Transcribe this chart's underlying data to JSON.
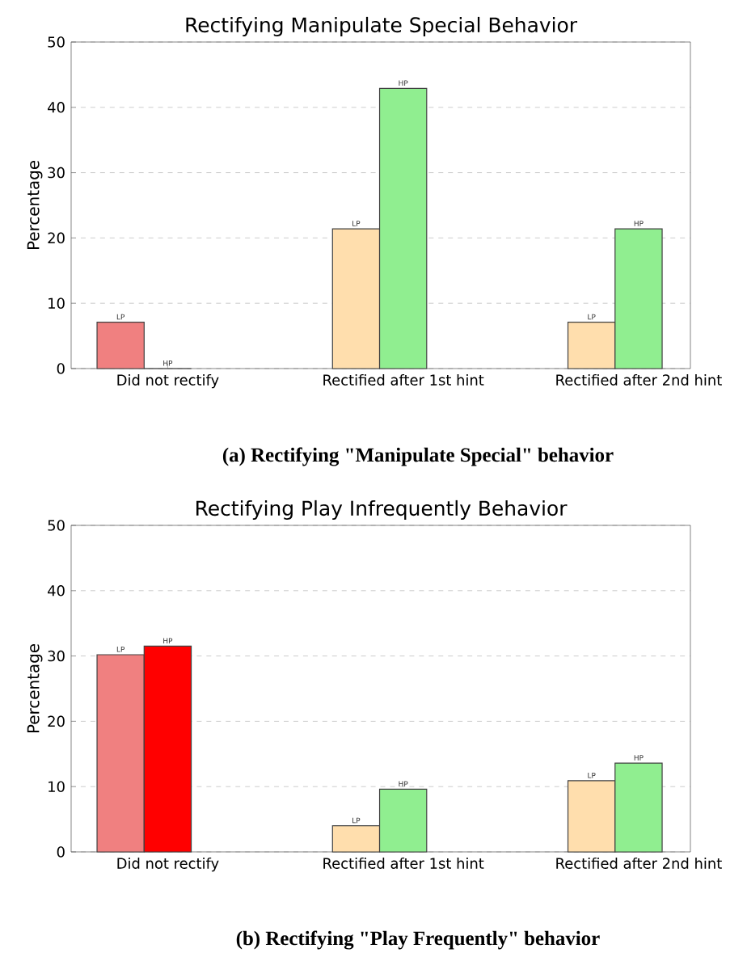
{
  "chart_data": [
    {
      "type": "bar",
      "title": "Rectifying Manipulate Special Behavior",
      "ylabel": "Percentage",
      "categories": [
        "Did not rectify",
        "Rectified after 1st hint",
        "Rectified after 2nd hint"
      ],
      "series": [
        {
          "name": "LP",
          "colors": [
            "#f08080",
            "#ffdead",
            "#ffdead"
          ],
          "values": [
            7.1,
            21.4,
            7.1
          ]
        },
        {
          "name": "HP",
          "colors": [
            "#ff0000",
            "#90ee90",
            "#90ee90"
          ],
          "values": [
            0,
            42.9,
            21.4
          ]
        }
      ],
      "ylim": [
        0,
        50
      ],
      "yticks": [
        0,
        10,
        20,
        30,
        40,
        50
      ],
      "grid": "y",
      "annotations": [
        "(a) Rectifying \"Manipulate Special\" behavior"
      ]
    },
    {
      "type": "bar",
      "title": "Rectifying Play Infrequently Behavior",
      "ylabel": "Percentage",
      "categories": [
        "Did not rectify",
        "Rectified after 1st hint",
        "Rectified after 2nd hint"
      ],
      "series": [
        {
          "name": "LP",
          "colors": [
            "#f08080",
            "#ffdead",
            "#ffdead"
          ],
          "values": [
            30.2,
            4.0,
            10.9
          ]
        },
        {
          "name": "HP",
          "colors": [
            "#ff0000",
            "#90ee90",
            "#90ee90"
          ],
          "values": [
            31.5,
            9.6,
            13.6
          ]
        }
      ],
      "ylim": [
        0,
        50
      ],
      "yticks": [
        0,
        10,
        20,
        30,
        40,
        50
      ],
      "grid": "y",
      "annotations": [
        "(b) Rectifying \"Play Frequently\" behavior"
      ]
    }
  ]
}
